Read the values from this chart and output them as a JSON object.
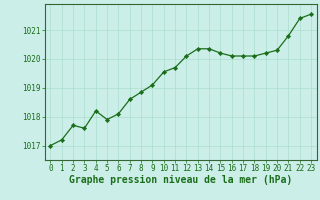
{
  "x": [
    0,
    1,
    2,
    3,
    4,
    5,
    6,
    7,
    8,
    9,
    10,
    11,
    12,
    13,
    14,
    15,
    16,
    17,
    18,
    19,
    20,
    21,
    22,
    23
  ],
  "y": [
    1017.0,
    1017.2,
    1017.7,
    1017.6,
    1018.2,
    1017.9,
    1018.1,
    1018.6,
    1018.85,
    1019.1,
    1019.55,
    1019.7,
    1020.1,
    1020.35,
    1020.35,
    1020.2,
    1020.1,
    1020.1,
    1020.1,
    1020.2,
    1020.3,
    1020.8,
    1021.4,
    1021.55
  ],
  "line_color": "#1a6e1a",
  "marker": "D",
  "marker_size": 2.2,
  "background_color": "#cceee8",
  "grid_color": "#aaddcc",
  "xlabel": "Graphe pression niveau de la mer (hPa)",
  "xlabel_fontsize": 7,
  "ylabel_ticks": [
    1017,
    1018,
    1019,
    1020,
    1021
  ],
  "ylim": [
    1016.5,
    1021.9
  ],
  "xlim": [
    -0.5,
    23.5
  ],
  "xticks": [
    0,
    1,
    2,
    3,
    4,
    5,
    6,
    7,
    8,
    9,
    10,
    11,
    12,
    13,
    14,
    15,
    16,
    17,
    18,
    19,
    20,
    21,
    22,
    23
  ],
  "tick_fontsize": 5.5,
  "axis_color": "#1a6e1a",
  "spine_color": "#336633",
  "linewidth": 0.9
}
